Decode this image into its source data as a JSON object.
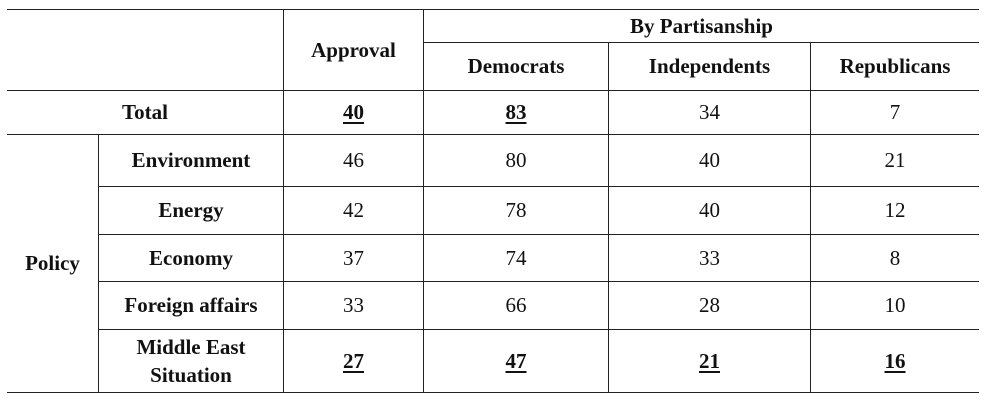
{
  "table": {
    "header": {
      "approval": "Approval",
      "group_title": "By Partisanship",
      "democrats": "Democrats",
      "independents": "Independents",
      "republicans": "Republicans"
    },
    "total": {
      "label": "Total",
      "approval": "40",
      "democrats": "83",
      "independents": "34",
      "republicans": "7"
    },
    "policy_label": "Policy",
    "rows": [
      {
        "label": "Environment",
        "approval": "46",
        "democrats": "80",
        "independents": "40",
        "republicans": "21"
      },
      {
        "label": "Energy",
        "approval": "42",
        "democrats": "78",
        "independents": "40",
        "republicans": "12"
      },
      {
        "label": "Economy",
        "approval": "37",
        "democrats": "74",
        "independents": "33",
        "republicans": "8"
      },
      {
        "label": "Foreign affairs",
        "approval": "33",
        "democrats": "66",
        "independents": "28",
        "republicans": "10"
      },
      {
        "label_line1": "Middle East",
        "label_line2": "Situation",
        "approval": "27",
        "democrats": "47",
        "independents": "21",
        "republicans": "16"
      }
    ]
  }
}
